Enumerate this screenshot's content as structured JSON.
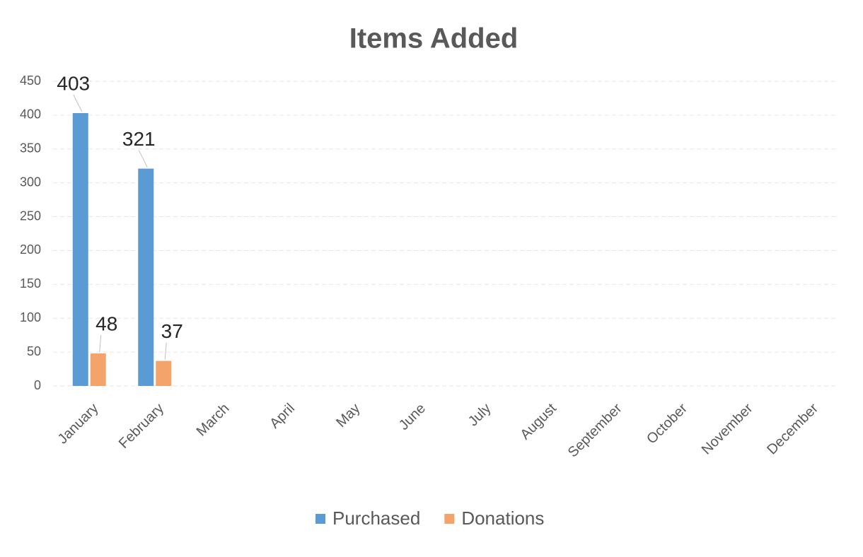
{
  "chart_data": {
    "type": "bar",
    "title": "Items Added",
    "categories": [
      "January",
      "February",
      "March",
      "April",
      "May",
      "June",
      "July",
      "August",
      "September",
      "October",
      "November",
      "December"
    ],
    "series": [
      {
        "name": "Purchased",
        "color": "#5b9bd5",
        "values": [
          403,
          321,
          null,
          null,
          null,
          null,
          null,
          null,
          null,
          null,
          null,
          null
        ]
      },
      {
        "name": "Donations",
        "color": "#f4a46a",
        "values": [
          48,
          37,
          null,
          null,
          null,
          null,
          null,
          null,
          null,
          null,
          null,
          null
        ]
      }
    ],
    "ylim": [
      0,
      450
    ],
    "yticks": [
      0,
      50,
      100,
      150,
      200,
      250,
      300,
      350,
      400,
      450
    ],
    "grid": true,
    "legend": "bottom"
  }
}
